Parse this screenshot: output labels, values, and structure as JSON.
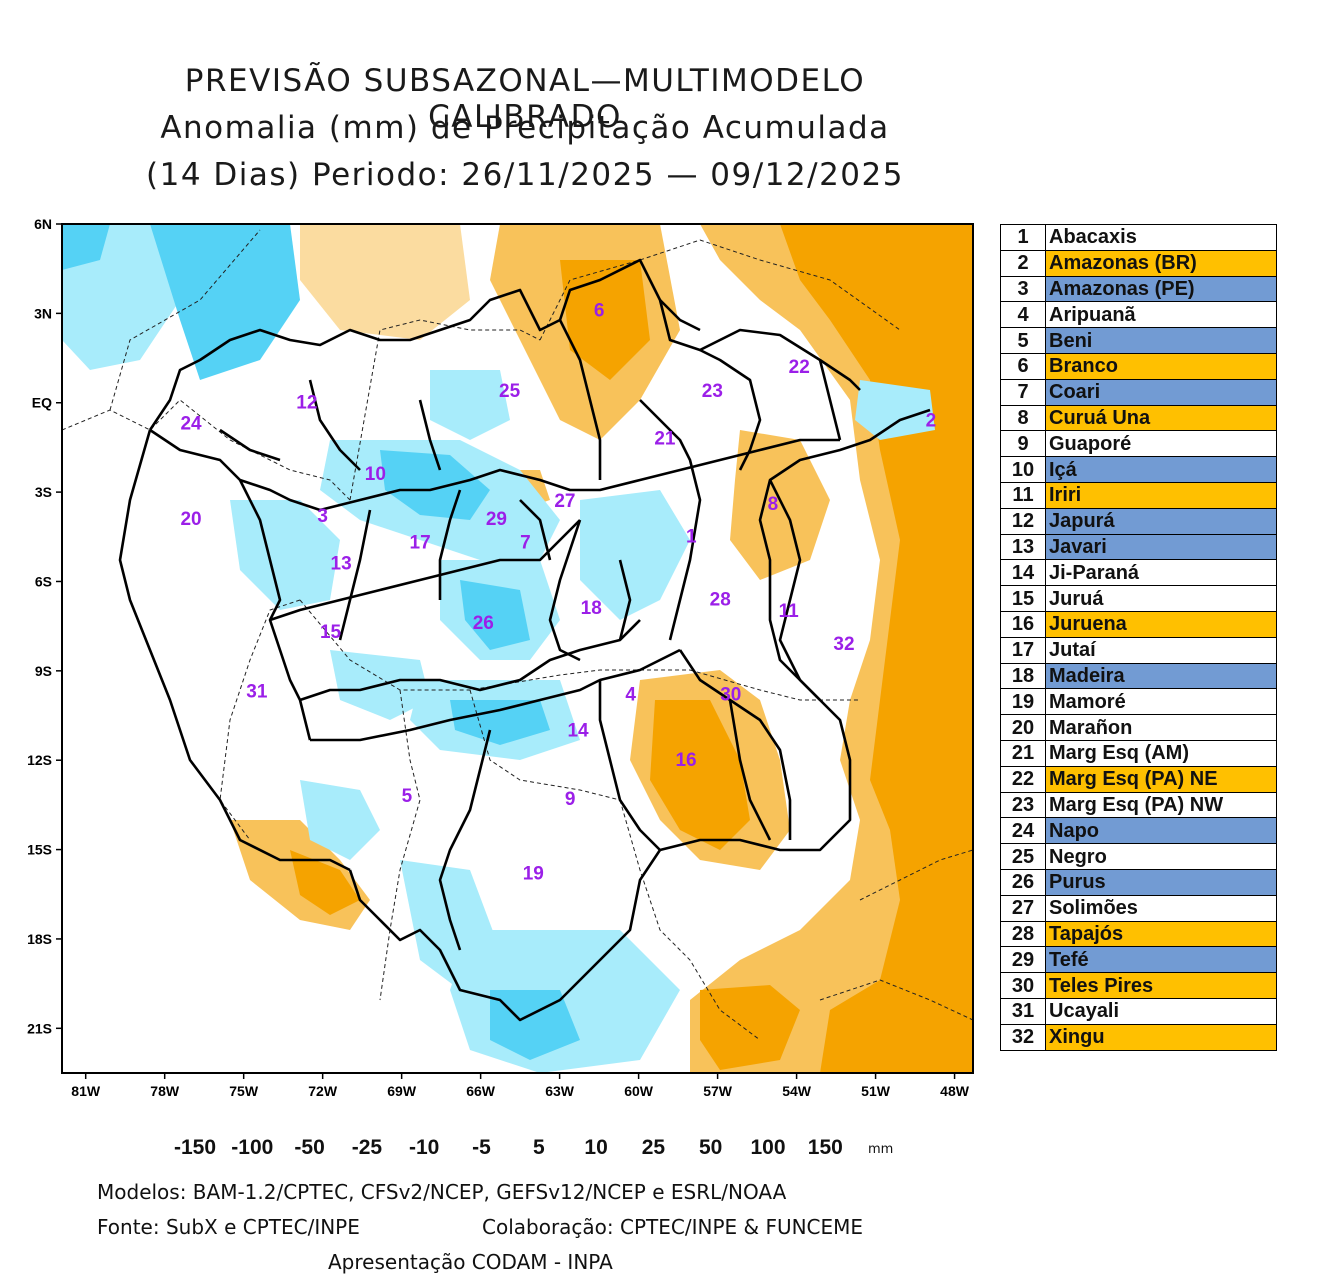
{
  "title": {
    "line1": "PREVISÃO SUBSAZONAL—MULTIMODELO CALIBRADO",
    "line2": "Anomalia (mm) de Precipitação Acumulada",
    "line3": "(14 Dias) Periodo: 26/11/2025 — 09/12/2025"
  },
  "colors": {
    "dry_strong": "#f5a300",
    "dry_medium": "#f8c25a",
    "dry_light": "#fbdca0",
    "wet_light": "#a8ecfb",
    "wet_medium": "#55d2f5",
    "wet_strong": "#1ab8f0",
    "legend_orange": "#ffc000",
    "legend_blue": "#729bd3"
  },
  "axes": {
    "lat_labels": [
      "6N",
      "3N",
      "EQ",
      "3S",
      "6S",
      "9S",
      "12S",
      "15S",
      "18S",
      "21S"
    ],
    "lon_labels": [
      "81W",
      "78W",
      "75W",
      "72W",
      "69W",
      "66W",
      "63W",
      "60W",
      "57W",
      "54W",
      "51W",
      "48W"
    ]
  },
  "basin_labels": [
    {
      "id": "1",
      "lat": -4.7,
      "lon": -58.0
    },
    {
      "id": "2",
      "lat": -0.8,
      "lon": -48.9
    },
    {
      "id": "3",
      "lat": -4.0,
      "lon": -72.0
    },
    {
      "id": "4",
      "lat": -10.0,
      "lon": -60.3
    },
    {
      "id": "5",
      "lat": -13.4,
      "lon": -68.8
    },
    {
      "id": "6",
      "lat": 2.9,
      "lon": -61.5
    },
    {
      "id": "7",
      "lat": -4.9,
      "lon": -64.3
    },
    {
      "id": "8",
      "lat": -3.6,
      "lon": -54.9
    },
    {
      "id": "9",
      "lat": -13.5,
      "lon": -62.6
    },
    {
      "id": "10",
      "lat": -2.6,
      "lon": -70.0
    },
    {
      "id": "11",
      "lat": -7.2,
      "lon": -54.3
    },
    {
      "id": "12",
      "lat": -0.2,
      "lon": -72.6
    },
    {
      "id": "13",
      "lat": -5.6,
      "lon": -71.3
    },
    {
      "id": "14",
      "lat": -11.2,
      "lon": -62.3
    },
    {
      "id": "15",
      "lat": -7.9,
      "lon": -71.7
    },
    {
      "id": "16",
      "lat": -12.2,
      "lon": -58.2
    },
    {
      "id": "17",
      "lat": -4.9,
      "lon": -68.3
    },
    {
      "id": "18",
      "lat": -7.1,
      "lon": -61.8
    },
    {
      "id": "19",
      "lat": -16.0,
      "lon": -64.0
    },
    {
      "id": "20",
      "lat": -4.1,
      "lon": -77.0
    },
    {
      "id": "21",
      "lat": -1.4,
      "lon": -59.0
    },
    {
      "id": "22",
      "lat": 1.0,
      "lon": -53.9
    },
    {
      "id": "23",
      "lat": 0.2,
      "lon": -57.2
    },
    {
      "id": "24",
      "lat": -0.9,
      "lon": -77.0
    },
    {
      "id": "25",
      "lat": 0.2,
      "lon": -64.9
    },
    {
      "id": "26",
      "lat": -7.6,
      "lon": -65.9
    },
    {
      "id": "27",
      "lat": -3.5,
      "lon": -62.8
    },
    {
      "id": "28",
      "lat": -6.8,
      "lon": -56.9
    },
    {
      "id": "29",
      "lat": -4.1,
      "lon": -65.4
    },
    {
      "id": "30",
      "lat": -10.0,
      "lon": -56.5
    },
    {
      "id": "31",
      "lat": -9.9,
      "lon": -74.5
    },
    {
      "id": "32",
      "lat": -8.3,
      "lon": -52.2
    }
  ],
  "basin_table": [
    {
      "num": "1",
      "name": "Abacaxis",
      "color": "#ffffff"
    },
    {
      "num": "2",
      "name": "Amazonas (BR)",
      "color": "#ffc000"
    },
    {
      "num": "3",
      "name": "Amazonas (PE)",
      "color": "#729bd3"
    },
    {
      "num": "4",
      "name": "Aripuanã",
      "color": "#ffffff"
    },
    {
      "num": "5",
      "name": "Beni",
      "color": "#729bd3"
    },
    {
      "num": "6",
      "name": "Branco",
      "color": "#ffc000"
    },
    {
      "num": "7",
      "name": "Coari",
      "color": "#729bd3"
    },
    {
      "num": "8",
      "name": "Curuá Una",
      "color": "#ffc000"
    },
    {
      "num": "9",
      "name": "Guaporé",
      "color": "#ffffff"
    },
    {
      "num": "10",
      "name": "Içá",
      "color": "#729bd3"
    },
    {
      "num": "11",
      "name": "Iriri",
      "color": "#ffc000"
    },
    {
      "num": "12",
      "name": "Japurá",
      "color": "#729bd3"
    },
    {
      "num": "13",
      "name": "Javari",
      "color": "#729bd3"
    },
    {
      "num": "14",
      "name": "Ji-Paraná",
      "color": "#ffffff"
    },
    {
      "num": "15",
      "name": "Juruá",
      "color": "#ffffff"
    },
    {
      "num": "16",
      "name": "Juruena",
      "color": "#ffc000"
    },
    {
      "num": "17",
      "name": "Jutaí",
      "color": "#ffffff"
    },
    {
      "num": "18",
      "name": "Madeira",
      "color": "#729bd3"
    },
    {
      "num": "19",
      "name": "Mamoré",
      "color": "#ffffff"
    },
    {
      "num": "20",
      "name": "Marañon",
      "color": "#ffffff"
    },
    {
      "num": "21",
      "name": "Marg Esq (AM)",
      "color": "#ffffff"
    },
    {
      "num": "22",
      "name": "Marg Esq (PA) NE",
      "color": "#ffc000"
    },
    {
      "num": "23",
      "name": "Marg Esq (PA) NW",
      "color": "#ffffff"
    },
    {
      "num": "24",
      "name": "Napo",
      "color": "#729bd3"
    },
    {
      "num": "25",
      "name": "Negro",
      "color": "#ffffff"
    },
    {
      "num": "26",
      "name": "Purus",
      "color": "#729bd3"
    },
    {
      "num": "27",
      "name": "Solimões",
      "color": "#ffffff"
    },
    {
      "num": "28",
      "name": "Tapajós",
      "color": "#ffc000"
    },
    {
      "num": "29",
      "name": "Tefé",
      "color": "#729bd3"
    },
    {
      "num": "30",
      "name": "Teles Pires",
      "color": "#ffc000"
    },
    {
      "num": "31",
      "name": "Ucayali",
      "color": "#ffffff"
    },
    {
      "num": "32",
      "name": "Xingu",
      "color": "#ffc000"
    }
  ],
  "colorbar": {
    "labels": [
      "-150",
      "-100",
      "-50",
      "-25",
      "-10",
      "-5",
      "5",
      "10",
      "25",
      "50",
      "100",
      "150"
    ],
    "colors": [
      "#8b0000",
      "#e60000",
      "#ff4c4c",
      "#f5a300",
      "#f8c25a",
      "#fbdca0",
      "#ffffff",
      "#a8ecfb",
      "#55d2f5",
      "#1ab8f0",
      "#0099cc",
      "#0077a0",
      "#004e6b"
    ],
    "unit": "mm"
  },
  "footer": {
    "models": "Modelos: BAM-1.2/CPTEC, CFSv2/NCEP, GEFSv12/NCEP e ESRL/NOAA",
    "source": "Fonte: SubX e CPTEC/INPE",
    "collab": "Colaboração: CPTEC/INPE & FUNCEME",
    "presentation": "Apresentação CODAM - INPA"
  }
}
